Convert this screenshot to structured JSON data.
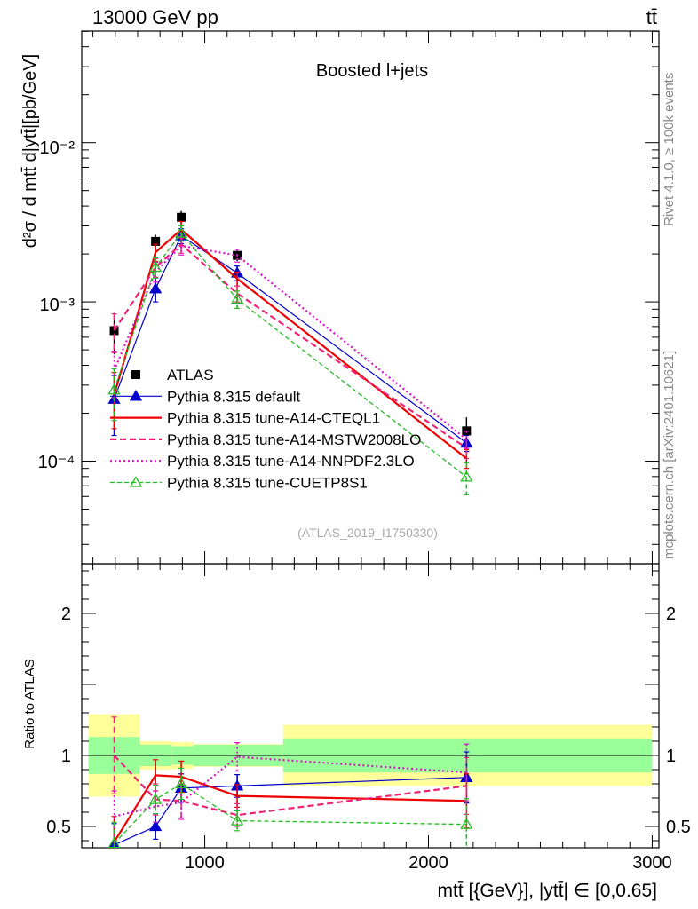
{
  "header": {
    "left": "13000 GeV pp",
    "right": "tt̄"
  },
  "side_text": {
    "top": "Rivet 4.1.0, ≥ 100k events",
    "bottom": "mcplots.cern.ch [arXiv:2401.10621]"
  },
  "colors": {
    "data": "#000000",
    "default": "#0000cc",
    "cteql1": "#ee0000",
    "mstw": "#ee2277",
    "nnpdf": "#dd11cc",
    "cuetp8s1": "#22bb22",
    "band_inner": "#99ff99",
    "band_outer": "#ffff99"
  },
  "chart_data": [
    {
      "type": "line",
      "yscale": "log",
      "title": "Boosted l+jets",
      "watermark": "(ATLAS_2019_I1750330)",
      "ylabel": "d²σ / d mtt̄ d|ytt̄|[pb/GeV]",
      "xlim": [
        450,
        3030
      ],
      "ylim": [
        2.27e-05,
        0.0502
      ],
      "ytick_labels": [
        "10⁻⁴",
        "10⁻³",
        "10⁻²"
      ],
      "x": [
        595,
        780,
        895,
        1145,
        2170
      ],
      "bins": [
        [
          480,
          710
        ],
        [
          710,
          850
        ],
        [
          850,
          950
        ],
        [
          950,
          1350
        ],
        [
          1350,
          3000
        ]
      ],
      "legend": [
        "ATLAS",
        "Pythia 8.315 default",
        "Pythia 8.315 tune-A14-CTEQL1",
        "Pythia 8.315 tune-A14-MSTW2008LO",
        "Pythia 8.315 tune-A14-NNPDF2.3LO",
        "Pythia 8.315 tune-CUETP8S1"
      ],
      "data": {
        "name": "ATLAS",
        "values": [
          0.00066,
          0.0024,
          0.0034,
          0.00196,
          0.000155
        ],
        "rel_err_inner": [
          0.135,
          0.075,
          0.065,
          0.075,
          0.12
        ],
        "rel_err_outer": [
          0.29,
          0.1,
          0.095,
          0.08,
          0.215
        ]
      },
      "series": [
        {
          "name": "Pythia 8.315 default",
          "key": "default",
          "values": [
            0.000245,
            0.00121,
            0.0026,
            0.00152,
            0.00013
          ],
          "err": [
            0.0001,
            0.00021,
            0.00028,
            0.00016,
            1.5e-05
          ]
        },
        {
          "name": "Pythia 8.315 tune-A14-CTEQL1",
          "key": "cteql1",
          "values": [
            0.00026,
            0.00205,
            0.00285,
            0.0014,
            0.000104
          ],
          "err": [
            0.0001,
            0.00025,
            0.00035,
            0.00014,
            1.4e-05
          ]
        },
        {
          "name": "Pythia 8.315 tune-A14-MSTW2008LO",
          "key": "mstw",
          "values": [
            0.00066,
            0.00165,
            0.0023,
            0.00113,
            0.000121
          ],
          "err": [
            0.00018,
            0.00022,
            0.00028,
            0.00013,
            1.7e-05
          ]
        },
        {
          "name": "Pythia 8.315 tune-A14-NNPDF2.3LO",
          "key": "nnpdf",
          "values": [
            0.00037,
            0.00155,
            0.00225,
            0.00196,
            0.000137
          ],
          "err": [
            0.00012,
            0.00022,
            0.00028,
            0.00018,
            1.7e-05
          ]
        },
        {
          "name": "Pythia 8.315 tune-CUETP8S1",
          "key": "cuetp8s1",
          "values": [
            0.00028,
            0.00165,
            0.0027,
            0.00104,
            7.95e-05
          ],
          "err": [
            0.0001,
            0.00024,
            0.0003,
            0.00013,
            1.8e-05
          ]
        }
      ]
    },
    {
      "type": "line",
      "yscale": "linear",
      "ylabel": "Ratio to ATLAS",
      "xlabel": "mtt̄ [{GeV}], |ytt̄| ∈ [0,0.65]",
      "xlim": [
        450,
        3030
      ],
      "ylim": [
        0.35,
        2.35
      ],
      "yticks": [
        0.5,
        1,
        2
      ],
      "ytick_labels": [
        "0.5",
        "1",
        "2"
      ],
      "xticks": [
        1000,
        2000,
        3000
      ],
      "xtick_labels": [
        "1000",
        "2000",
        "3000"
      ],
      "x": [
        595,
        780,
        895,
        1145,
        2170
      ],
      "band_inner": [
        [
          0.87,
          1.13
        ],
        [
          0.925,
          1.075
        ],
        [
          0.935,
          1.065
        ],
        [
          0.925,
          1.075
        ],
        [
          0.88,
          1.12
        ]
      ],
      "band_outer": [
        [
          0.71,
          1.29
        ],
        [
          0.9,
          1.1
        ],
        [
          0.905,
          1.095
        ],
        [
          0.92,
          1.08
        ],
        [
          0.785,
          1.215
        ]
      ],
      "series": [
        {
          "name": "Pythia 8.315 default",
          "key": "default",
          "values": [
            0.37,
            0.5,
            0.77,
            0.785,
            0.845
          ],
          "err": [
            0.15,
            0.09,
            0.1,
            0.08,
            0.18
          ]
        },
        {
          "name": "Pythia 8.315 tune-A14-CTEQL1",
          "key": "cteql1",
          "values": [
            0.39,
            0.86,
            0.85,
            0.715,
            0.68
          ],
          "err": [
            0.18,
            0.11,
            0.11,
            0.08,
            0.19
          ]
        },
        {
          "name": "Pythia 8.315 tune-A14-MSTW2008LO",
          "key": "mstw",
          "values": [
            1.0,
            0.69,
            0.68,
            0.58,
            0.785
          ],
          "err": [
            0.27,
            0.11,
            0.12,
            0.08,
            0.2
          ]
        },
        {
          "name": "Pythia 8.315 tune-A14-NNPDF2.3LO",
          "key": "nnpdf",
          "values": [
            0.57,
            0.64,
            0.67,
            0.99,
            0.88
          ],
          "err": [
            0.18,
            0.11,
            0.12,
            0.1,
            0.2
          ]
        },
        {
          "name": "Pythia 8.315 tune-CUETP8S1",
          "key": "cuetp8s1",
          "values": [
            0.38,
            0.69,
            0.8,
            0.54,
            0.515
          ],
          "err": [
            0.15,
            0.1,
            0.11,
            0.07,
            0.18
          ]
        }
      ]
    }
  ]
}
